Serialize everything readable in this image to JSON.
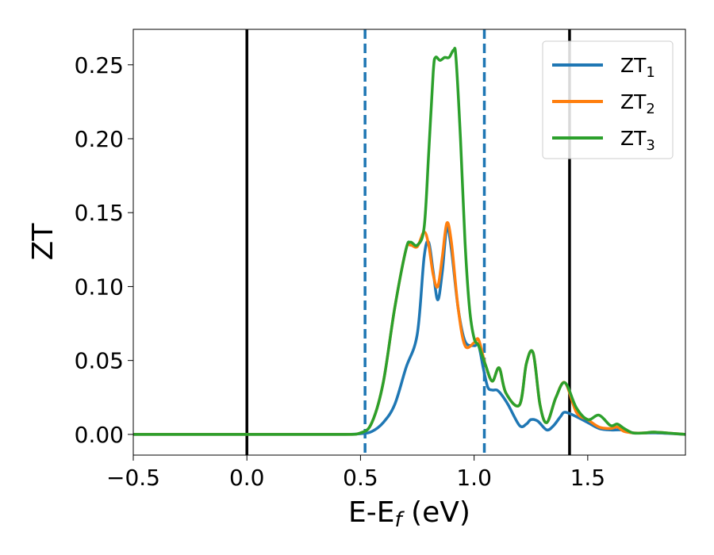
{
  "chart_data": {
    "type": "line",
    "xlabel_main": "E-E",
    "xlabel_sub": "f",
    "xlabel_unit": " (eV)",
    "ylabel": "ZT",
    "xlim": [
      -0.5,
      1.93
    ],
    "ylim": [
      -0.014,
      0.274
    ],
    "x_ticks": [
      -0.5,
      0.0,
      0.5,
      1.0,
      1.5
    ],
    "x_tick_labels": [
      "−0.5",
      "0.0",
      "0.5",
      "1.0",
      "1.5"
    ],
    "y_ticks": [
      0.0,
      0.05,
      0.1,
      0.15,
      0.2,
      0.25
    ],
    "y_tick_labels": [
      "0.00",
      "0.05",
      "0.10",
      "0.15",
      "0.20",
      "0.25"
    ],
    "grid": false,
    "legend_position": "top-right",
    "vlines_solid": [
      0.0,
      1.42
    ],
    "vlines_dashed": [
      0.52,
      1.045
    ],
    "colors": {
      "solid_vline": "#000000",
      "dashed_vline": "#1f77b4"
    },
    "series": [
      {
        "name": "ZT",
        "name_sub": "1",
        "color": "#1f77b4",
        "x": [
          -0.5,
          0.0,
          0.4,
          0.5,
          0.55,
          0.6,
          0.65,
          0.7,
          0.75,
          0.78,
          0.8,
          0.82,
          0.84,
          0.86,
          0.88,
          0.9,
          0.93,
          0.96,
          1.0,
          1.02,
          1.04,
          1.06,
          1.08,
          1.1,
          1.12,
          1.15,
          1.2,
          1.23,
          1.25,
          1.28,
          1.32,
          1.35,
          1.38,
          1.4,
          1.45,
          1.5,
          1.55,
          1.6,
          1.65,
          1.7,
          1.8,
          1.93
        ],
        "y": [
          0.0,
          0.0,
          0.0,
          0.0005,
          0.002,
          0.008,
          0.02,
          0.045,
          0.068,
          0.12,
          0.13,
          0.11,
          0.091,
          0.11,
          0.14,
          0.125,
          0.085,
          0.063,
          0.06,
          0.06,
          0.045,
          0.032,
          0.03,
          0.03,
          0.027,
          0.02,
          0.006,
          0.007,
          0.01,
          0.009,
          0.003,
          0.006,
          0.012,
          0.015,
          0.012,
          0.008,
          0.004,
          0.003,
          0.003,
          0.001,
          0.001,
          0.0
        ]
      },
      {
        "name": "ZT",
        "name_sub": "2",
        "color": "#ff7f0e",
        "x": [
          -0.5,
          0.0,
          0.4,
          0.5,
          0.55,
          0.6,
          0.65,
          0.7,
          0.72,
          0.75,
          0.78,
          0.8,
          0.82,
          0.84,
          0.86,
          0.88,
          0.9,
          0.93,
          0.96,
          1.0,
          1.02,
          1.05,
          1.08,
          1.11,
          1.14,
          1.2,
          1.23,
          1.26,
          1.29,
          1.32,
          1.36,
          1.4,
          1.45,
          1.5,
          1.55,
          1.6,
          1.63,
          1.66,
          1.7,
          1.75,
          1.8,
          1.93
        ],
        "y": [
          0.0,
          0.0,
          0.0,
          0.001,
          0.008,
          0.035,
          0.085,
          0.125,
          0.128,
          0.127,
          0.137,
          0.128,
          0.108,
          0.1,
          0.12,
          0.143,
          0.13,
          0.085,
          0.06,
          0.062,
          0.064,
          0.047,
          0.036,
          0.045,
          0.028,
          0.02,
          0.048,
          0.055,
          0.02,
          0.008,
          0.025,
          0.035,
          0.015,
          0.01,
          0.005,
          0.004,
          0.005,
          0.002,
          0.001,
          0.001,
          0.0015,
          0.0
        ]
      },
      {
        "name": "ZT",
        "name_sub": "3",
        "color": "#2ca02c",
        "x": [
          -0.5,
          0.0,
          0.4,
          0.5,
          0.55,
          0.6,
          0.65,
          0.7,
          0.72,
          0.75,
          0.78,
          0.8,
          0.82,
          0.83,
          0.85,
          0.87,
          0.89,
          0.91,
          0.92,
          0.94,
          0.96,
          0.98,
          1.0,
          1.02,
          1.05,
          1.08,
          1.11,
          1.14,
          1.2,
          1.23,
          1.26,
          1.29,
          1.32,
          1.36,
          1.4,
          1.45,
          1.5,
          1.55,
          1.6,
          1.63,
          1.66,
          1.7,
          1.75,
          1.8,
          1.93
        ],
        "y": [
          0.0,
          0.0,
          0.0,
          0.001,
          0.008,
          0.035,
          0.085,
          0.125,
          0.13,
          0.128,
          0.14,
          0.19,
          0.245,
          0.255,
          0.253,
          0.255,
          0.255,
          0.26,
          0.255,
          0.2,
          0.13,
          0.085,
          0.065,
          0.06,
          0.047,
          0.036,
          0.045,
          0.028,
          0.02,
          0.048,
          0.055,
          0.02,
          0.008,
          0.025,
          0.035,
          0.018,
          0.01,
          0.013,
          0.006,
          0.007,
          0.004,
          0.001,
          0.001,
          0.0015,
          0.0
        ]
      }
    ]
  }
}
